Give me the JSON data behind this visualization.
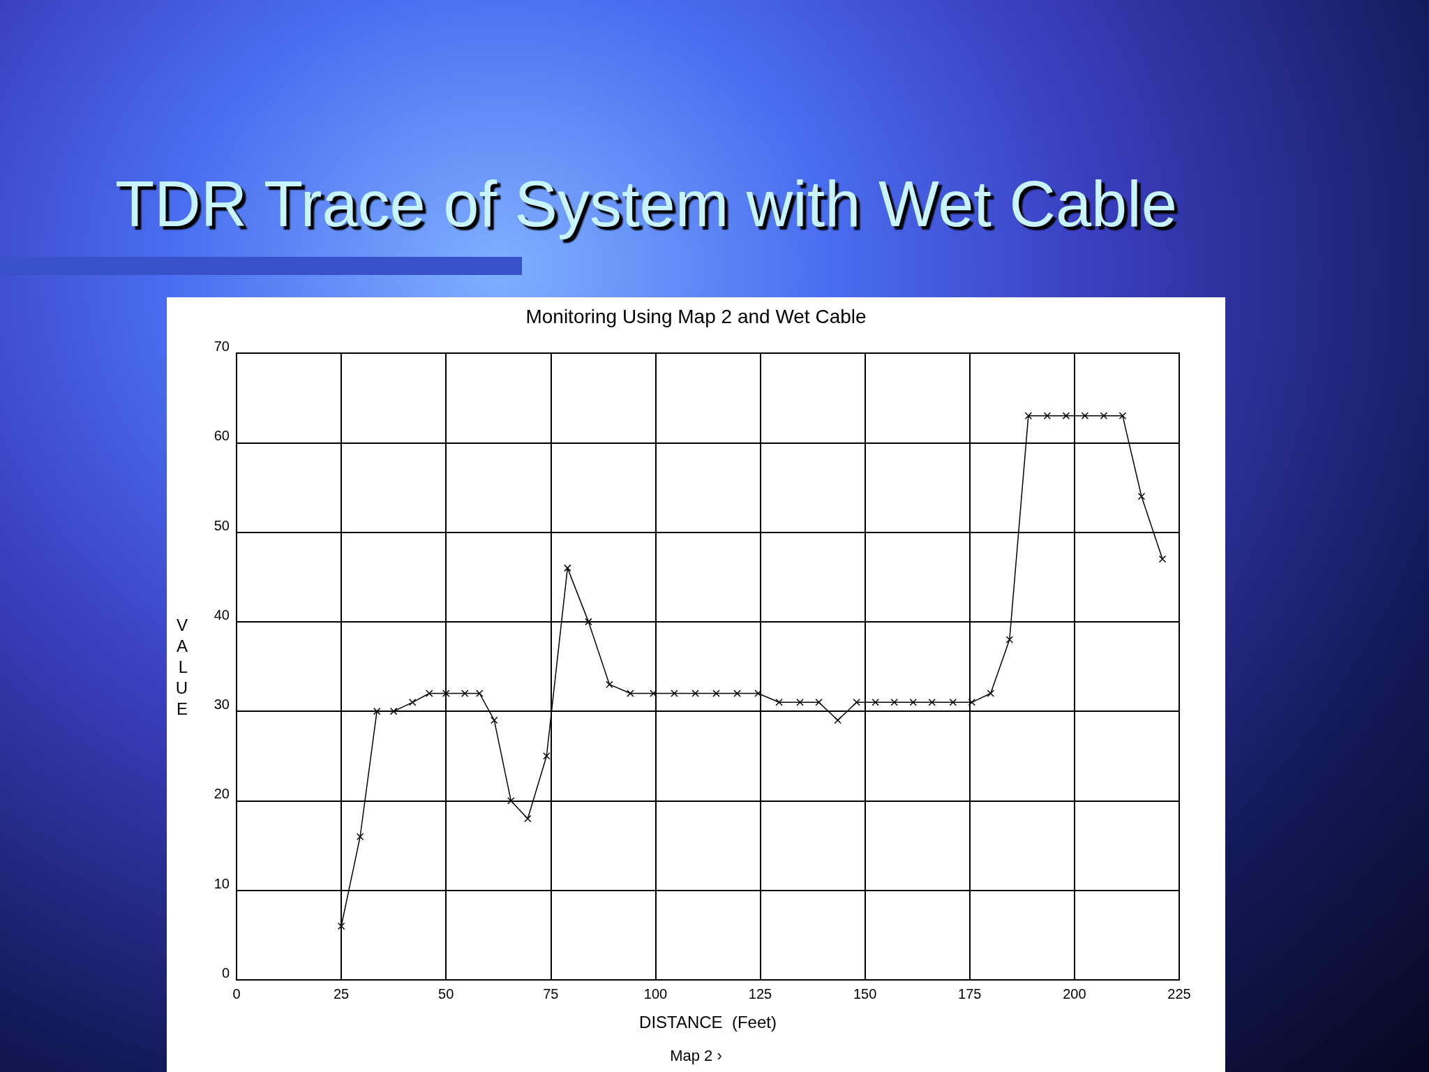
{
  "chart_data": {
    "type": "line",
    "title": "TDR Trace of System with Wet Cable",
    "subtitle": "Monitoring Using Map 2 and Wet Cable",
    "xlabel": "DISTANCE  (Feet)",
    "ylabel": "VALUE",
    "annotations": [
      "Map  2 ›"
    ],
    "x": [
      25,
      29.5,
      33.5,
      37.5,
      42,
      46,
      50,
      54.5,
      58,
      61.5,
      65.5,
      69.5,
      74,
      79,
      84,
      89,
      94,
      99.5,
      104.5,
      109.5,
      114.5,
      119.5,
      124.5,
      129.5,
      134.5,
      139,
      143.5,
      148,
      152.5,
      157,
      161.5,
      166,
      171,
      175.5,
      180,
      184.5,
      189,
      193.5,
      198,
      202.5,
      207,
      211.5,
      216,
      221
    ],
    "series": [
      {
        "color": "#000000",
        "values": [
          6,
          16,
          30,
          30,
          31,
          32,
          32,
          32,
          32,
          29,
          20,
          18,
          25,
          46,
          40,
          33,
          32,
          32,
          32,
          32,
          32,
          32,
          32,
          31,
          31,
          31,
          29,
          31,
          31,
          31,
          31,
          31,
          31,
          31,
          32,
          38,
          63,
          63,
          63,
          63,
          63,
          63,
          54,
          47
        ]
      }
    ],
    "xlim": [
      0,
      225
    ],
    "xticks": [
      0,
      25,
      50,
      75,
      100,
      125,
      150,
      175,
      200,
      225
    ],
    "ylim": [
      0,
      70
    ],
    "yticks": [
      0,
      10,
      20,
      30,
      40,
      50,
      60,
      70
    ],
    "grid": true,
    "marker": "cross",
    "line_style": "solid"
  }
}
